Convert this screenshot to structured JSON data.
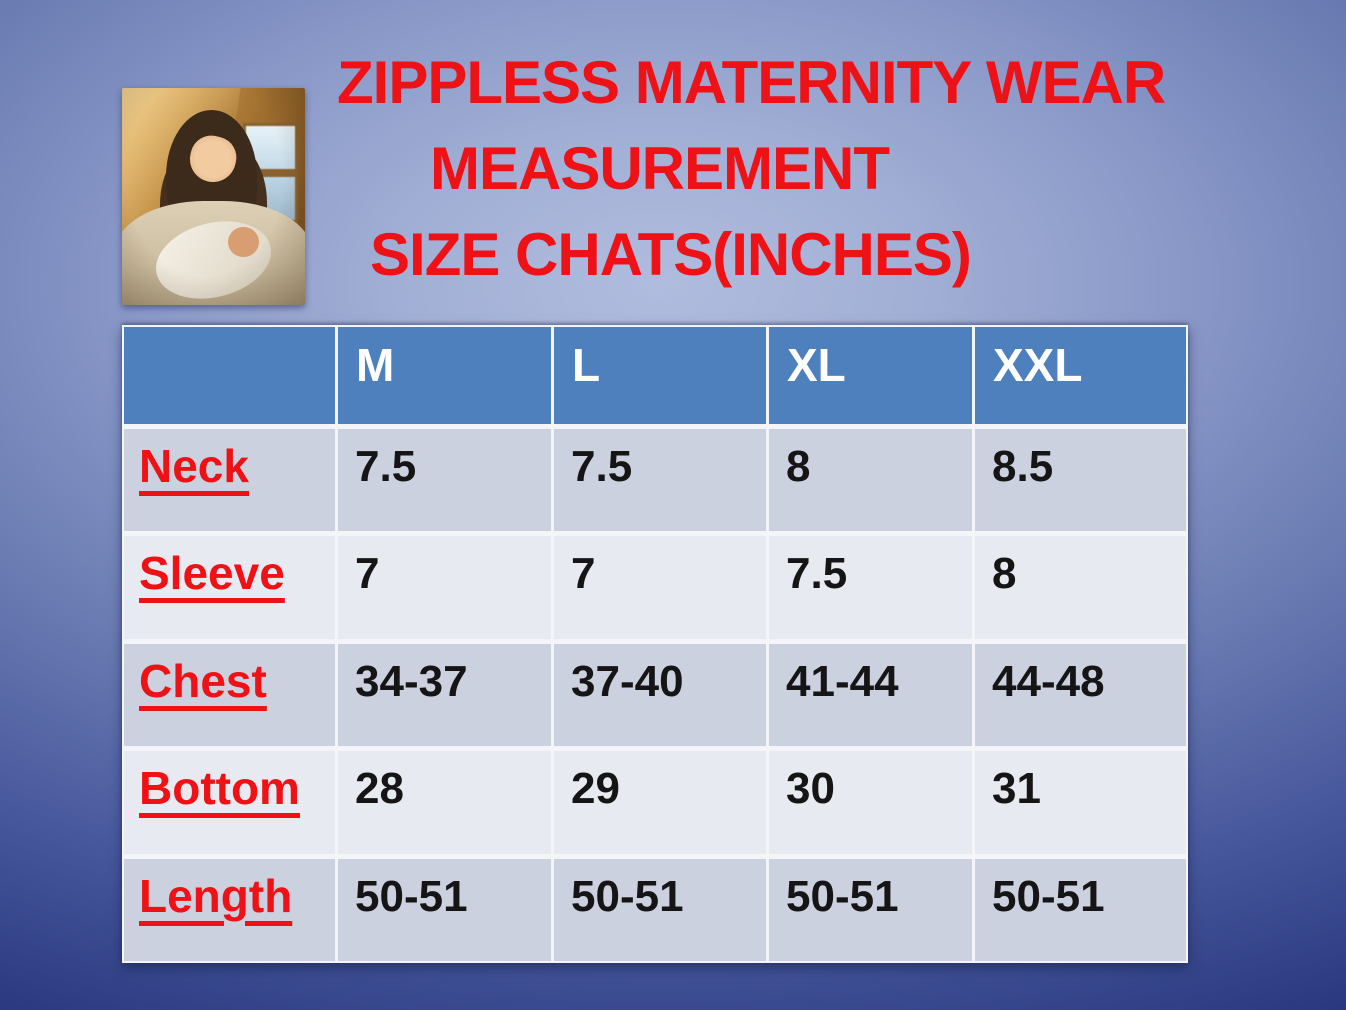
{
  "title": {
    "line1": "ZIPPLESS MATERNITY WEAR",
    "line2": "MEASUREMENT",
    "line3": "SIZE CHATS(INCHES)"
  },
  "photo": {
    "description": "Mother holding newborn baby"
  },
  "colors": {
    "title_red": "#ee1116",
    "header_blue": "#4e80bd",
    "row_band_dark": "#ccd1e0",
    "row_band_light": "#e8eaf2",
    "background_center": "#aab6da",
    "background_edge": "#1c286b",
    "grid_line": "#ffffff"
  },
  "chart_data": {
    "type": "table",
    "title": "ZIPPLESS MATERNITY WEAR MEASUREMENT SIZE CHATS(INCHES)",
    "units": "inches",
    "columns": [
      "",
      "M",
      "L",
      "XL",
      "XXL"
    ],
    "rows": [
      [
        "Neck",
        "7.5",
        "7.5",
        "8",
        "8.5"
      ],
      [
        "Sleeve",
        "7",
        "7",
        "7.5",
        "8"
      ],
      [
        "Chest",
        "34-37",
        "37-40",
        "41-44",
        "44-48"
      ],
      [
        "Bottom",
        "28",
        "29",
        "30",
        "31"
      ],
      [
        "Length",
        "50-51",
        "50-51",
        "50-51",
        "50-51"
      ]
    ]
  }
}
